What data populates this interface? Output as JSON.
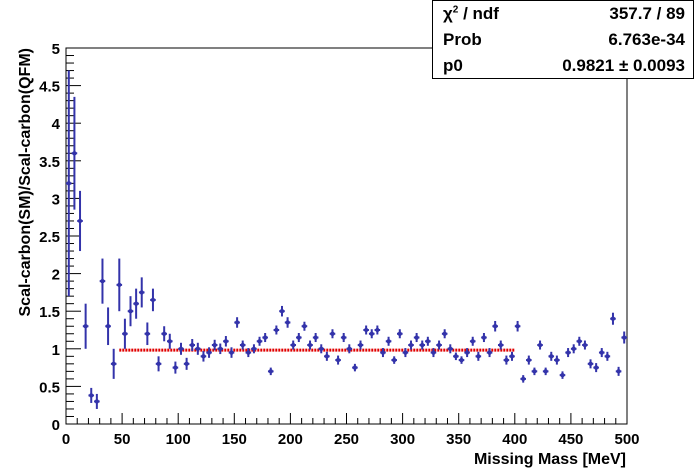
{
  "chart_data": {
    "type": "scatter",
    "title": "",
    "xlabel": "Missing Mass [MeV]",
    "ylabel": "Scal-carbon(SM)/Scal-carbon(QFM)",
    "xlim": [
      0,
      500
    ],
    "ylim": [
      0,
      5
    ],
    "x_ticks": [
      "0",
      "50",
      "100",
      "150",
      "200",
      "250",
      "300",
      "350",
      "400",
      "450",
      "500"
    ],
    "y_ticks": [
      "0",
      "0.5",
      "1",
      "1.5",
      "2",
      "2.5",
      "3",
      "3.5",
      "4",
      "4.5",
      "5"
    ],
    "grid": false,
    "marker_color": "#3333aa",
    "fit_color": "#e00000",
    "fit": {
      "type": "constant",
      "p0": 0.9821,
      "x_range": [
        47.5,
        400
      ]
    },
    "series": [
      {
        "x": [
          2.5,
          7.5,
          12.5,
          17.5,
          22.5,
          27.5,
          32.5,
          37.5,
          42.5,
          47.5,
          52.5,
          57.5,
          62.5,
          67.5,
          72.5,
          77.5,
          82.5,
          87.5,
          92.5,
          97.5,
          102.5,
          107.5,
          112.5,
          117.5,
          122.5,
          127.5,
          132.5,
          137.5,
          142.5,
          147.5,
          152.5,
          157.5,
          162.5,
          167.5,
          172.5,
          177.5,
          182.5,
          187.5,
          192.5,
          197.5,
          202.5,
          207.5,
          212.5,
          217.5,
          222.5,
          227.5,
          232.5,
          237.5,
          242.5,
          247.5,
          252.5,
          257.5,
          262.5,
          267.5,
          272.5,
          277.5,
          282.5,
          287.5,
          292.5,
          297.5,
          302.5,
          307.5,
          312.5,
          317.5,
          322.5,
          327.5,
          332.5,
          337.5,
          342.5,
          347.5,
          352.5,
          357.5,
          362.5,
          367.5,
          372.5,
          377.5,
          382.5,
          387.5,
          392.5,
          397.5,
          402.5,
          407.5,
          412.5,
          417.5,
          422.5,
          427.5,
          432.5,
          437.5,
          442.5,
          447.5,
          452.5,
          457.5,
          462.5,
          467.5,
          472.5,
          477.5,
          482.5,
          487.5,
          492.5,
          497.5
        ],
        "y": [
          3.2,
          3.6,
          2.7,
          1.3,
          0.38,
          0.3,
          1.9,
          1.3,
          0.8,
          1.85,
          1.2,
          1.5,
          1.6,
          1.75,
          1.2,
          1.65,
          0.8,
          1.2,
          1.1,
          0.75,
          1.0,
          0.8,
          1.05,
          1.0,
          0.9,
          0.95,
          1.05,
          1.0,
          1.1,
          0.95,
          1.35,
          1.05,
          0.95,
          1.0,
          1.1,
          1.15,
          0.7,
          1.25,
          1.5,
          1.35,
          1.05,
          1.15,
          1.3,
          1.05,
          1.15,
          1.0,
          0.9,
          1.2,
          0.85,
          1.15,
          1.0,
          0.75,
          1.05,
          1.25,
          1.2,
          1.25,
          0.95,
          1.1,
          0.85,
          1.2,
          0.95,
          1.05,
          1.15,
          1.05,
          1.1,
          0.95,
          1.05,
          1.2,
          1.0,
          0.9,
          0.85,
          0.95,
          1.1,
          0.9,
          1.15,
          0.95,
          1.3,
          1.05,
          0.85,
          0.9,
          1.3,
          0.6,
          0.85,
          0.7,
          1.05,
          0.7,
          0.9,
          0.85,
          0.65,
          0.95,
          1.0,
          1.1,
          1.05,
          0.8,
          0.75,
          0.95,
          0.9,
          1.4,
          0.7,
          1.15
        ],
        "err": [
          1.5,
          0.75,
          0.4,
          0.3,
          0.1,
          0.1,
          0.3,
          0.25,
          0.2,
          0.35,
          0.2,
          0.2,
          0.2,
          0.2,
          0.15,
          0.15,
          0.1,
          0.1,
          0.1,
          0.08,
          0.08,
          0.08,
          0.08,
          0.08,
          0.07,
          0.07,
          0.07,
          0.07,
          0.07,
          0.07,
          0.07,
          0.06,
          0.06,
          0.06,
          0.06,
          0.06,
          0.05,
          0.06,
          0.07,
          0.07,
          0.06,
          0.06,
          0.06,
          0.06,
          0.06,
          0.06,
          0.06,
          0.06,
          0.06,
          0.06,
          0.06,
          0.05,
          0.06,
          0.06,
          0.06,
          0.06,
          0.06,
          0.06,
          0.05,
          0.06,
          0.06,
          0.06,
          0.06,
          0.06,
          0.06,
          0.06,
          0.06,
          0.06,
          0.06,
          0.05,
          0.05,
          0.06,
          0.06,
          0.06,
          0.06,
          0.06,
          0.07,
          0.06,
          0.06,
          0.06,
          0.07,
          0.05,
          0.06,
          0.05,
          0.06,
          0.05,
          0.06,
          0.06,
          0.05,
          0.06,
          0.06,
          0.06,
          0.06,
          0.06,
          0.06,
          0.06,
          0.06,
          0.08,
          0.06,
          0.08
        ]
      }
    ]
  },
  "stats": {
    "chi_label": "χ",
    "chi_sup": "2",
    "chi_tail": " / ndf",
    "chi_value": "357.7 / 89",
    "prob_label": "Prob",
    "prob_value": "6.763e-34",
    "p0_label": "p0",
    "p0_value": "0.9821 ± 0.0093"
  }
}
